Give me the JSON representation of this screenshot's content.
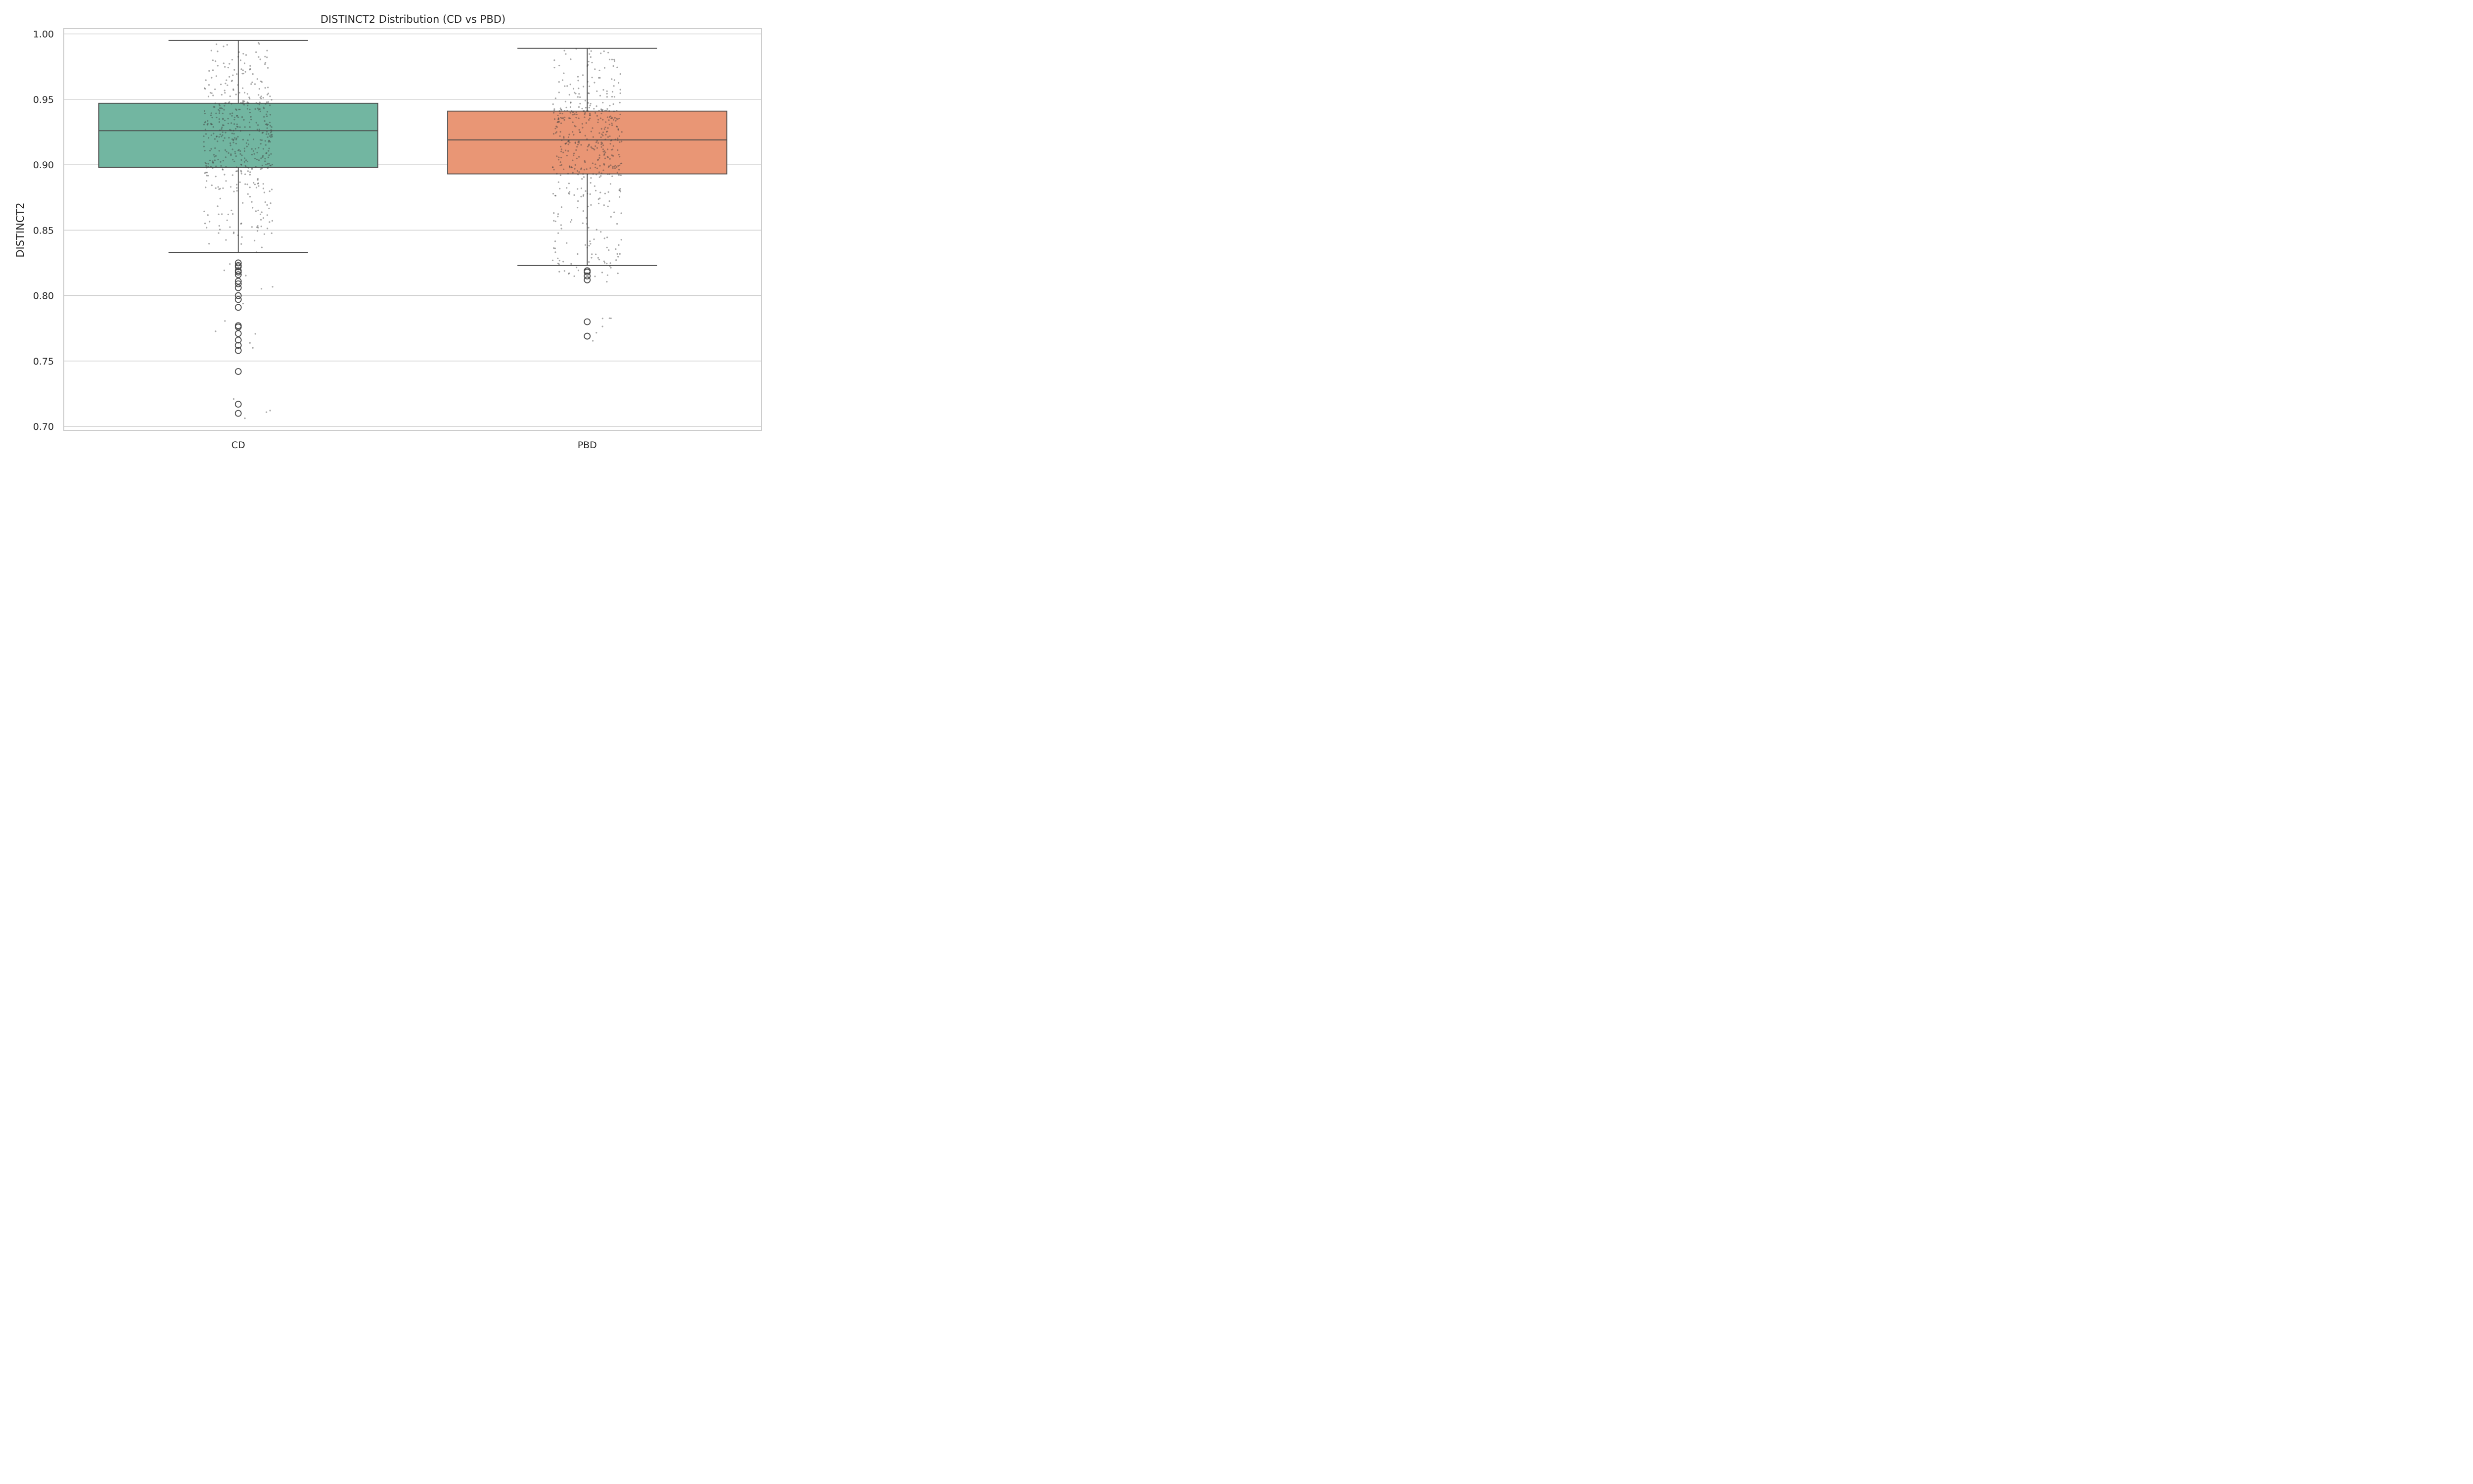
{
  "chart_data": {
    "type": "box",
    "title": "DISTINCT2 Distribution (CD vs PBD)",
    "xlabel": "",
    "ylabel": "DISTINCT2",
    "ylim": [
      0.697,
      1.004
    ],
    "yticks": [
      0.7,
      0.75,
      0.8,
      0.85,
      0.9,
      0.95,
      1.0
    ],
    "ytick_labels": [
      "0.70",
      "0.75",
      "0.80",
      "0.85",
      "0.90",
      "0.95",
      "1.00"
    ],
    "grid": "horizontal",
    "categories": [
      "CD",
      "PBD"
    ],
    "boxes": [
      {
        "category": "CD",
        "color": "#72b6a1",
        "whisker_low": 0.833,
        "q1": 0.898,
        "median": 0.926,
        "q3": 0.947,
        "whisker_high": 0.995,
        "outliers": [
          0.825,
          0.823,
          0.822,
          0.819,
          0.818,
          0.816,
          0.811,
          0.809,
          0.806,
          0.8,
          0.797,
          0.791,
          0.777,
          0.776,
          0.771,
          0.766,
          0.762,
          0.758,
          0.742,
          0.717,
          0.71
        ]
      },
      {
        "category": "PBD",
        "color": "#e99675",
        "whisker_low": 0.823,
        "q1": 0.893,
        "median": 0.919,
        "q3": 0.941,
        "whisker_high": 0.989,
        "outliers": [
          0.819,
          0.818,
          0.815,
          0.812,
          0.78,
          0.769
        ]
      }
    ],
    "jitter": {
      "color": "#404040",
      "opacity": 0.45,
      "points_per_group": 500
    }
  }
}
